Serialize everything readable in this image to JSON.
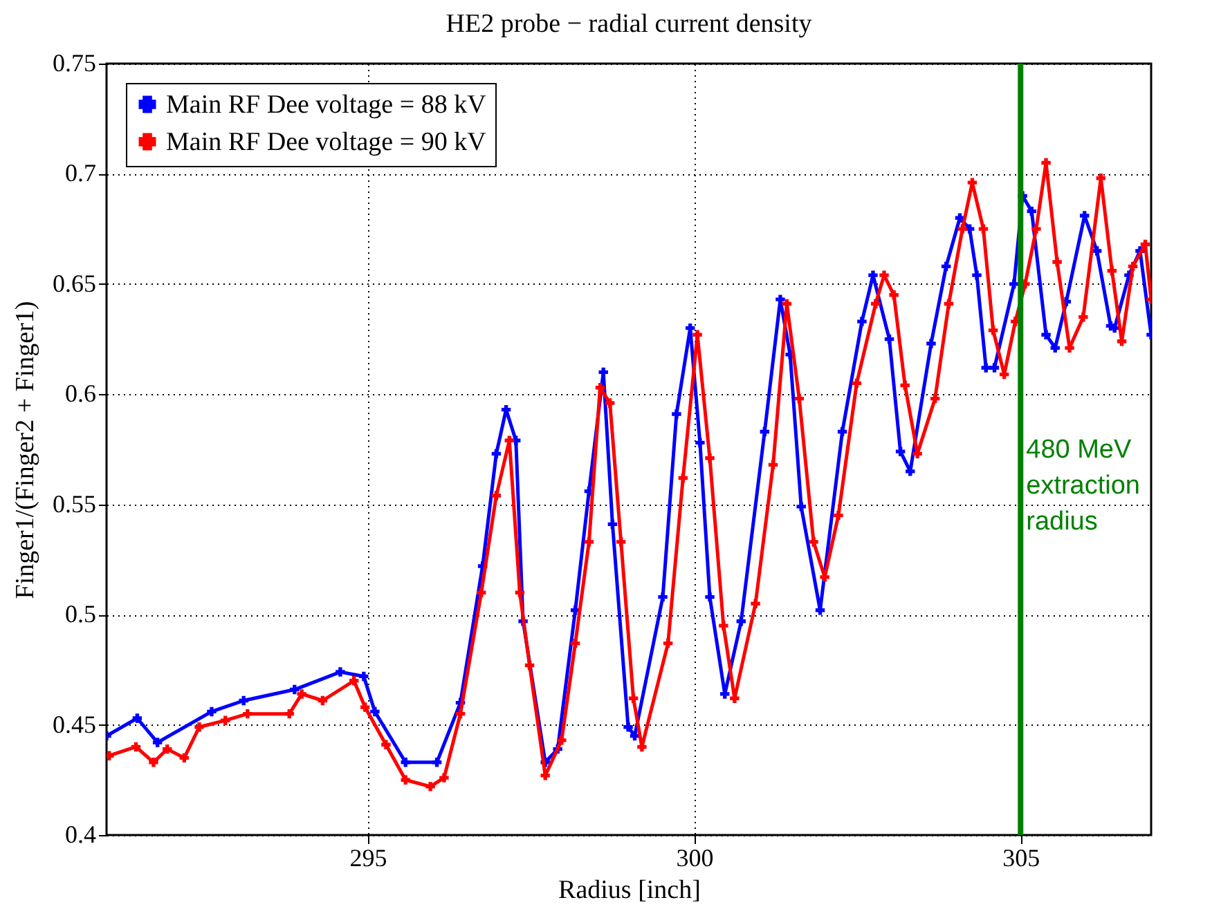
{
  "chart_data": {
    "type": "line",
    "title": "HE2 probe − radial current density",
    "xlabel": "Radius [inch]",
    "ylabel": "Finger1/(Finger2 + Finger1)",
    "xlim": [
      291,
      307
    ],
    "xticks": [
      295,
      300,
      305
    ],
    "ylim": [
      0.4,
      0.75
    ],
    "yticks": [
      0.4,
      0.45,
      0.5,
      0.55,
      0.6,
      0.65,
      0.7,
      0.75
    ],
    "grid": true,
    "legend": "top left",
    "marker": "cross",
    "line_style": "solid",
    "ref_lines": [
      {
        "axis": "x",
        "value": 305,
        "label": "480 MeV\nextraction\nradius",
        "color": "#008000"
      }
    ],
    "series": [
      {
        "name": "Main RF Dee voltage = 88 kV",
        "color": "#0000ff",
        "x": [
          291.0,
          291.47,
          291.78,
          292.61,
          293.1,
          293.88,
          294.58,
          294.94,
          295.11,
          295.58,
          296.06,
          296.42,
          296.76,
          296.97,
          297.12,
          297.27,
          297.38,
          297.72,
          297.91,
          298.18,
          298.39,
          298.61,
          298.75,
          298.99,
          299.09,
          299.52,
          299.73,
          299.94,
          300.09,
          300.24,
          300.47,
          300.72,
          301.08,
          301.32,
          301.47,
          301.64,
          301.93,
          302.27,
          302.57,
          302.74,
          302.99,
          303.16,
          303.31,
          303.63,
          303.86,
          304.07,
          304.22,
          304.33,
          304.47,
          304.6,
          304.9,
          305.03,
          305.17,
          305.39,
          305.53,
          305.7,
          305.98,
          306.17,
          306.38,
          306.44,
          306.66,
          306.83,
          307.0
        ],
        "values": [
          0.445,
          0.453,
          0.442,
          0.456,
          0.461,
          0.466,
          0.474,
          0.472,
          0.456,
          0.433,
          0.433,
          0.46,
          0.522,
          0.573,
          0.593,
          0.579,
          0.497,
          0.433,
          0.439,
          0.502,
          0.556,
          0.61,
          0.541,
          0.449,
          0.445,
          0.508,
          0.591,
          0.63,
          0.578,
          0.508,
          0.464,
          0.497,
          0.583,
          0.643,
          0.618,
          0.549,
          0.502,
          0.583,
          0.633,
          0.654,
          0.625,
          0.574,
          0.565,
          0.623,
          0.658,
          0.68,
          0.675,
          0.654,
          0.612,
          0.612,
          0.65,
          0.69,
          0.683,
          0.627,
          0.621,
          0.642,
          0.681,
          0.665,
          0.631,
          0.63,
          0.654,
          0.665,
          0.627
        ]
      },
      {
        "name": "Main RF Dee voltage = 90 kV",
        "color": "#ff0000",
        "x": [
          291.04,
          291.45,
          291.72,
          291.93,
          292.19,
          292.42,
          292.82,
          293.16,
          293.8,
          293.99,
          294.31,
          294.79,
          294.96,
          295.28,
          295.58,
          295.96,
          296.17,
          296.42,
          296.74,
          296.97,
          297.17,
          297.33,
          297.48,
          297.72,
          297.97,
          298.18,
          298.39,
          298.56,
          298.71,
          298.88,
          299.07,
          299.2,
          299.6,
          299.83,
          300.05,
          300.24,
          300.45,
          300.62,
          300.94,
          301.21,
          301.42,
          301.61,
          301.83,
          302.0,
          302.21,
          302.49,
          302.78,
          302.91,
          303.06,
          303.23,
          303.42,
          303.69,
          303.9,
          304.11,
          304.26,
          304.43,
          304.58,
          304.75,
          304.92,
          305.07,
          305.24,
          305.39,
          305.56,
          305.75,
          305.96,
          306.23,
          306.4,
          306.55,
          306.72,
          306.91,
          307.0
        ],
        "values": [
          0.436,
          0.44,
          0.433,
          0.439,
          0.435,
          0.449,
          0.452,
          0.455,
          0.455,
          0.464,
          0.461,
          0.47,
          0.458,
          0.441,
          0.425,
          0.422,
          0.426,
          0.455,
          0.51,
          0.554,
          0.579,
          0.51,
          0.477,
          0.427,
          0.443,
          0.487,
          0.533,
          0.603,
          0.596,
          0.533,
          0.462,
          0.44,
          0.487,
          0.562,
          0.627,
          0.571,
          0.495,
          0.462,
          0.505,
          0.568,
          0.641,
          0.598,
          0.533,
          0.517,
          0.545,
          0.605,
          0.641,
          0.654,
          0.645,
          0.604,
          0.573,
          0.598,
          0.641,
          0.675,
          0.696,
          0.675,
          0.629,
          0.609,
          0.633,
          0.65,
          0.675,
          0.705,
          0.66,
          0.621,
          0.635,
          0.698,
          0.656,
          0.624,
          0.658,
          0.668,
          0.643
        ]
      }
    ]
  }
}
